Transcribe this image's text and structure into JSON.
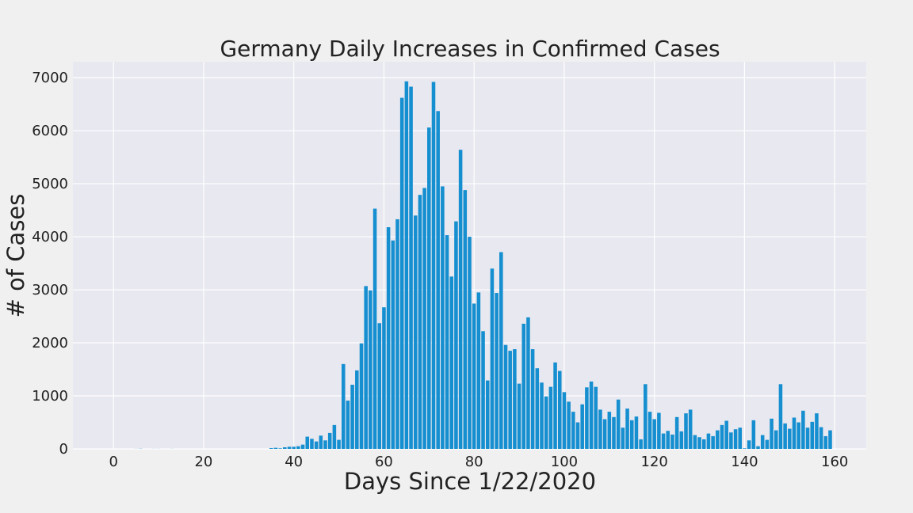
{
  "chart_data": {
    "type": "bar",
    "title": "Germany Daily Increases in Confirmed Cases",
    "xlabel": "Days Since 1/22/2020",
    "ylabel": "# of Cases",
    "xlim": [
      -9,
      167
    ],
    "ylim": [
      0,
      7300
    ],
    "xticks": [
      0,
      20,
      40,
      60,
      80,
      100,
      120,
      140,
      160
    ],
    "yticks": [
      0,
      1000,
      2000,
      3000,
      4000,
      5000,
      6000,
      7000
    ],
    "grid": true,
    "bar_color": "#168fd0",
    "background_color": "#e8e8f0",
    "figure_color": "#f0f0f0",
    "grid_color": "#ffffff",
    "x": [
      0,
      1,
      2,
      3,
      4,
      5,
      6,
      7,
      8,
      9,
      10,
      11,
      12,
      13,
      14,
      15,
      16,
      17,
      18,
      19,
      20,
      21,
      22,
      23,
      24,
      25,
      26,
      27,
      28,
      29,
      30,
      31,
      32,
      33,
      34,
      35,
      36,
      37,
      38,
      39,
      40,
      41,
      42,
      43,
      44,
      45,
      46,
      47,
      48,
      49,
      50,
      51,
      52,
      53,
      54,
      55,
      56,
      57,
      58,
      59,
      60,
      61,
      62,
      63,
      64,
      65,
      66,
      67,
      68,
      69,
      70,
      71,
      72,
      73,
      74,
      75,
      76,
      77,
      78,
      79,
      80,
      81,
      82,
      83,
      84,
      85,
      86,
      87,
      88,
      89,
      90,
      91,
      92,
      93,
      94,
      95,
      96,
      97,
      98,
      99,
      100,
      101,
      102,
      103,
      104,
      105,
      106,
      107,
      108,
      109,
      110,
      111,
      112,
      113,
      114,
      115,
      116,
      117,
      118,
      119,
      120,
      121,
      122,
      123,
      124,
      125,
      126,
      127,
      128,
      129,
      130,
      131,
      132,
      133,
      134,
      135,
      136,
      137,
      138,
      139,
      140,
      141,
      142,
      143,
      144,
      145,
      146,
      147,
      148,
      149,
      150,
      151,
      152,
      153,
      154,
      155,
      156,
      157,
      158,
      159
    ],
    "values": [
      0,
      0,
      0,
      0,
      0,
      1,
      3,
      0,
      0,
      1,
      1,
      0,
      0,
      1,
      0,
      0,
      0,
      0,
      0,
      0,
      0,
      0,
      0,
      0,
      0,
      0,
      0,
      0,
      0,
      0,
      0,
      0,
      0,
      0,
      0,
      14,
      20,
      10,
      30,
      40,
      40,
      50,
      80,
      230,
      190,
      140,
      250,
      160,
      300,
      450,
      170,
      1600,
      910,
      1210,
      1480,
      1990,
      3070,
      2990,
      4530,
      2370,
      2670,
      4180,
      3930,
      4330,
      6620,
      6930,
      6830,
      4400,
      4790,
      4920,
      6060,
      6920,
      6370,
      4950,
      4030,
      3250,
      4290,
      5640,
      4880,
      4000,
      2740,
      2950,
      2220,
      1290,
      3400,
      2940,
      3710,
      1960,
      1850,
      1880,
      1230,
      2360,
      2480,
      1880,
      1520,
      1250,
      990,
      1170,
      1630,
      1470,
      1070,
      890,
      700,
      500,
      840,
      1160,
      1270,
      1170,
      740,
      560,
      700,
      600,
      930,
      400,
      760,
      540,
      610,
      180,
      1220,
      700,
      560,
      680,
      290,
      340,
      270,
      600,
      330,
      670,
      740,
      260,
      220,
      180,
      290,
      240,
      350,
      450,
      530,
      310,
      370,
      400,
      10,
      160,
      540,
      50,
      260,
      170,
      570,
      350,
      1220,
      480,
      380,
      590,
      500,
      720,
      400,
      510,
      670,
      410,
      240,
      350
    ]
  }
}
